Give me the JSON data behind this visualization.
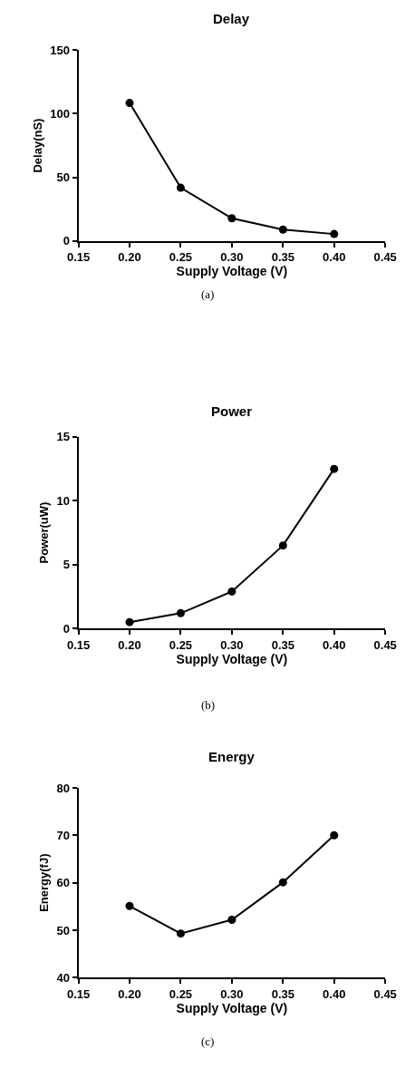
{
  "chart_data": [
    {
      "type": "line",
      "title": "Delay",
      "xlabel": "Supply Voltage (V)",
      "ylabel": "Delay(nS)",
      "x": [
        0.2,
        0.25,
        0.3,
        0.35,
        0.4
      ],
      "values": [
        108.5,
        41.8,
        17.8,
        8.9,
        5.4
      ],
      "color": "#000000",
      "marker": "circle",
      "xlim": [
        0.15,
        0.45
      ],
      "xticks": [
        0.15,
        {
          "value": 0.2,
          "label": "0.20"
        },
        0.25,
        {
          "value": 0.3,
          "label": "0.30"
        },
        0.35,
        {
          "value": 0.4,
          "label": "0.40"
        },
        0.45
      ],
      "ylim": [
        0,
        150
      ],
      "yticks": [
        0,
        50,
        100,
        150
      ],
      "annotations": [
        "(a)"
      ]
    },
    {
      "type": "line",
      "title": "Power",
      "xlabel": "Supply Voltage (V)",
      "ylabel": "Power(uW)",
      "x": [
        0.2,
        0.25,
        0.3,
        0.35,
        0.4
      ],
      "values": [
        0.5,
        1.2,
        2.9,
        6.5,
        12.5
      ],
      "color": "#000000",
      "marker": "circle",
      "xlim": [
        0.15,
        0.45
      ],
      "xticks": [
        0.15,
        {
          "value": 0.2,
          "label": "0.20"
        },
        0.25,
        {
          "value": 0.3,
          "label": "0.30"
        },
        0.35,
        {
          "value": 0.4,
          "label": "0.40"
        },
        0.45
      ],
      "ylim": [
        0,
        15
      ],
      "yticks": [
        0,
        5,
        10,
        15
      ],
      "annotations": [
        "(b)"
      ]
    },
    {
      "type": "line",
      "title": "Energy",
      "xlabel": "Supply Voltage (V)",
      "ylabel": "Energy(fJ)",
      "x": [
        0.2,
        0.25,
        0.3,
        0.35,
        0.4
      ],
      "values": [
        55.1,
        49.3,
        52.2,
        60.1,
        70.0
      ],
      "color": "#000000",
      "marker": "circle",
      "xlim": [
        0.15,
        0.45
      ],
      "xticks": [
        0.15,
        {
          "value": 0.2,
          "label": "0.20"
        },
        0.25,
        {
          "value": 0.3,
          "label": "0.30"
        },
        0.35,
        {
          "value": 0.4,
          "label": "0.40"
        },
        0.45
      ],
      "ylim": [
        40,
        80
      ],
      "yticks": [
        40,
        50,
        60,
        70,
        80
      ],
      "annotations": [
        "(c)"
      ]
    }
  ]
}
